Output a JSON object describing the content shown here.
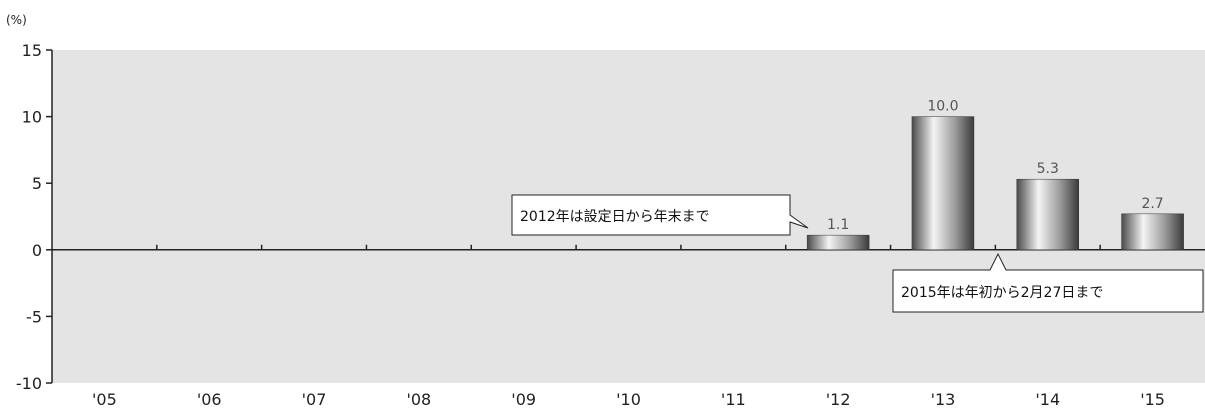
{
  "chart_data": {
    "type": "bar",
    "unit_label": "(%)",
    "categories": [
      "'05",
      "'06",
      "'07",
      "'08",
      "'09",
      "'10",
      "'11",
      "'12",
      "'13",
      "'14",
      "'15"
    ],
    "values": [
      null,
      null,
      null,
      null,
      null,
      null,
      null,
      1.1,
      10.0,
      5.3,
      2.7
    ],
    "value_labels": [
      "",
      "",
      "",
      "",
      "",
      "",
      "",
      "1.1",
      "10.0",
      "5.3",
      "2.7"
    ],
    "ylim": [
      -10,
      15
    ],
    "yticks": [
      15,
      10,
      5,
      0,
      -5,
      -10
    ],
    "ytick_labels": [
      "15",
      "10",
      "5",
      "0",
      "-5",
      "-10"
    ],
    "grid": false,
    "annotations": [
      {
        "text": "2012年は設定日から年末まで",
        "category_index": 7
      },
      {
        "text": "2015年は年初から2月27日まで",
        "category_index": 10
      }
    ],
    "colors": {
      "plot_background": "#e4e4e4",
      "bar_dark": "#3a3a3a",
      "bar_light": "#f2f2f2"
    }
  }
}
